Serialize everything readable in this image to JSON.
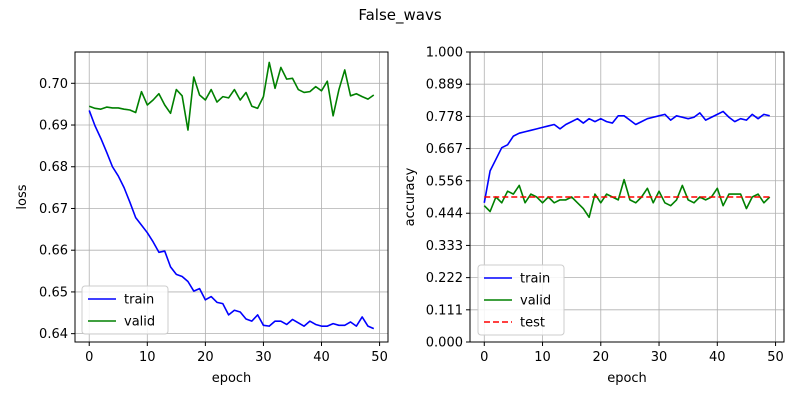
{
  "figure": {
    "suptitle": "False_wavs"
  },
  "chart_data": [
    {
      "type": "line",
      "xlabel": "epoch",
      "ylabel": "loss",
      "xlim": [
        -2.45,
        51.45
      ],
      "ylim": [
        0.638,
        0.7075
      ],
      "xticks": [
        0,
        10,
        20,
        30,
        40,
        50
      ],
      "xtick_labels": [
        "0",
        "10",
        "20",
        "30",
        "40",
        "50"
      ],
      "yticks": [
        0.64,
        0.65,
        0.66,
        0.67,
        0.68,
        0.69,
        0.7
      ],
      "ytick_labels": [
        "0.64",
        "0.65",
        "0.66",
        "0.67",
        "0.68",
        "0.69",
        "0.70"
      ],
      "grid": true,
      "legend": {
        "placement": "lower-left",
        "entries": [
          "train",
          "valid"
        ]
      },
      "series": [
        {
          "name": "train",
          "color": "#0000ff",
          "style": "solid",
          "x": [
            0,
            1,
            2,
            3,
            4,
            5,
            6,
            7,
            8,
            9,
            10,
            11,
            12,
            13,
            14,
            15,
            16,
            17,
            18,
            19,
            20,
            21,
            22,
            23,
            24,
            25,
            26,
            27,
            28,
            29,
            30,
            31,
            32,
            33,
            34,
            35,
            36,
            37,
            38,
            39,
            40,
            41,
            42,
            43,
            44,
            45,
            46,
            47,
            48,
            49
          ],
          "values": [
            0.6935,
            0.6898,
            0.6868,
            0.6835,
            0.68,
            0.6778,
            0.675,
            0.6715,
            0.6678,
            0.666,
            0.6642,
            0.662,
            0.6595,
            0.6598,
            0.656,
            0.6542,
            0.6537,
            0.6525,
            0.6502,
            0.6508,
            0.6481,
            0.6489,
            0.6475,
            0.6472,
            0.6445,
            0.6456,
            0.6452,
            0.6435,
            0.643,
            0.6445,
            0.642,
            0.6418,
            0.643,
            0.643,
            0.6422,
            0.6434,
            0.6426,
            0.6418,
            0.643,
            0.6422,
            0.6418,
            0.6418,
            0.6424,
            0.642,
            0.642,
            0.6428,
            0.6418,
            0.644,
            0.6418,
            0.6412
          ]
        },
        {
          "name": "valid",
          "color": "#008000",
          "style": "solid",
          "x": [
            0,
            1,
            2,
            3,
            4,
            5,
            6,
            7,
            8,
            9,
            10,
            11,
            12,
            13,
            14,
            15,
            16,
            17,
            18,
            19,
            20,
            21,
            22,
            23,
            24,
            25,
            26,
            27,
            28,
            29,
            30,
            31,
            32,
            33,
            34,
            35,
            36,
            37,
            38,
            39,
            40,
            41,
            42,
            43,
            44,
            45,
            46,
            47,
            48,
            49
          ],
          "values": [
            0.6945,
            0.694,
            0.6938,
            0.6943,
            0.6941,
            0.6941,
            0.6938,
            0.6936,
            0.693,
            0.698,
            0.6948,
            0.696,
            0.6975,
            0.6948,
            0.6928,
            0.6985,
            0.697,
            0.6888,
            0.7015,
            0.6972,
            0.696,
            0.6985,
            0.6955,
            0.6968,
            0.6965,
            0.6985,
            0.696,
            0.6978,
            0.6945,
            0.694,
            0.6968,
            0.705,
            0.6988,
            0.7038,
            0.701,
            0.7012,
            0.6985,
            0.6978,
            0.698,
            0.6992,
            0.6982,
            0.7005,
            0.6922,
            0.6985,
            0.7032,
            0.697,
            0.6975,
            0.6968,
            0.6962,
            0.6972
          ]
        }
      ]
    },
    {
      "type": "line",
      "xlabel": "epoch",
      "ylabel": "accuracy",
      "xlim": [
        -2.45,
        51.45
      ],
      "ylim": [
        0.0,
        1.0
      ],
      "xticks": [
        0,
        10,
        20,
        30,
        40,
        50
      ],
      "xtick_labels": [
        "0",
        "10",
        "20",
        "30",
        "40",
        "50"
      ],
      "yticks": [
        0.0,
        0.111,
        0.222,
        0.333,
        0.444,
        0.556,
        0.667,
        0.778,
        0.889,
        1.0
      ],
      "ytick_labels": [
        "0.000",
        "0.111",
        "0.222",
        "0.333",
        "0.444",
        "0.556",
        "0.667",
        "0.778",
        "0.889",
        "1.000"
      ],
      "grid": true,
      "legend": {
        "placement": "lower-left",
        "entries": [
          "train",
          "valid",
          "test"
        ]
      },
      "series": [
        {
          "name": "train",
          "color": "#0000ff",
          "style": "solid",
          "x": [
            0,
            1,
            2,
            3,
            4,
            5,
            6,
            7,
            8,
            9,
            10,
            11,
            12,
            13,
            14,
            15,
            16,
            17,
            18,
            19,
            20,
            21,
            22,
            23,
            24,
            25,
            26,
            27,
            28,
            29,
            30,
            31,
            32,
            33,
            34,
            35,
            36,
            37,
            38,
            39,
            40,
            41,
            42,
            43,
            44,
            45,
            46,
            47,
            48,
            49
          ],
          "values": [
            0.48,
            0.59,
            0.63,
            0.67,
            0.68,
            0.71,
            0.72,
            0.725,
            0.73,
            0.735,
            0.74,
            0.745,
            0.75,
            0.735,
            0.75,
            0.76,
            0.77,
            0.755,
            0.77,
            0.76,
            0.77,
            0.76,
            0.755,
            0.78,
            0.78,
            0.765,
            0.75,
            0.76,
            0.77,
            0.775,
            0.78,
            0.785,
            0.765,
            0.78,
            0.775,
            0.77,
            0.775,
            0.79,
            0.765,
            0.775,
            0.785,
            0.795,
            0.775,
            0.76,
            0.77,
            0.765,
            0.785,
            0.77,
            0.785,
            0.78
          ]
        },
        {
          "name": "valid",
          "color": "#008000",
          "style": "solid",
          "x": [
            0,
            1,
            2,
            3,
            4,
            5,
            6,
            7,
            8,
            9,
            10,
            11,
            12,
            13,
            14,
            15,
            16,
            17,
            18,
            19,
            20,
            21,
            22,
            23,
            24,
            25,
            26,
            27,
            28,
            29,
            30,
            31,
            32,
            33,
            34,
            35,
            36,
            37,
            38,
            39,
            40,
            41,
            42,
            43,
            44,
            45,
            46,
            47,
            48,
            49
          ],
          "values": [
            0.47,
            0.45,
            0.5,
            0.48,
            0.52,
            0.51,
            0.54,
            0.48,
            0.51,
            0.5,
            0.48,
            0.5,
            0.48,
            0.49,
            0.49,
            0.5,
            0.48,
            0.46,
            0.43,
            0.51,
            0.48,
            0.51,
            0.5,
            0.49,
            0.56,
            0.49,
            0.48,
            0.5,
            0.53,
            0.48,
            0.52,
            0.48,
            0.47,
            0.49,
            0.54,
            0.49,
            0.48,
            0.5,
            0.49,
            0.5,
            0.53,
            0.47,
            0.51,
            0.51,
            0.51,
            0.46,
            0.5,
            0.51,
            0.48,
            0.5
          ]
        },
        {
          "name": "test",
          "color": "#ff0000",
          "style": "dashed",
          "x": [
            0,
            49
          ],
          "values": [
            0.5,
            0.5
          ]
        }
      ]
    }
  ]
}
